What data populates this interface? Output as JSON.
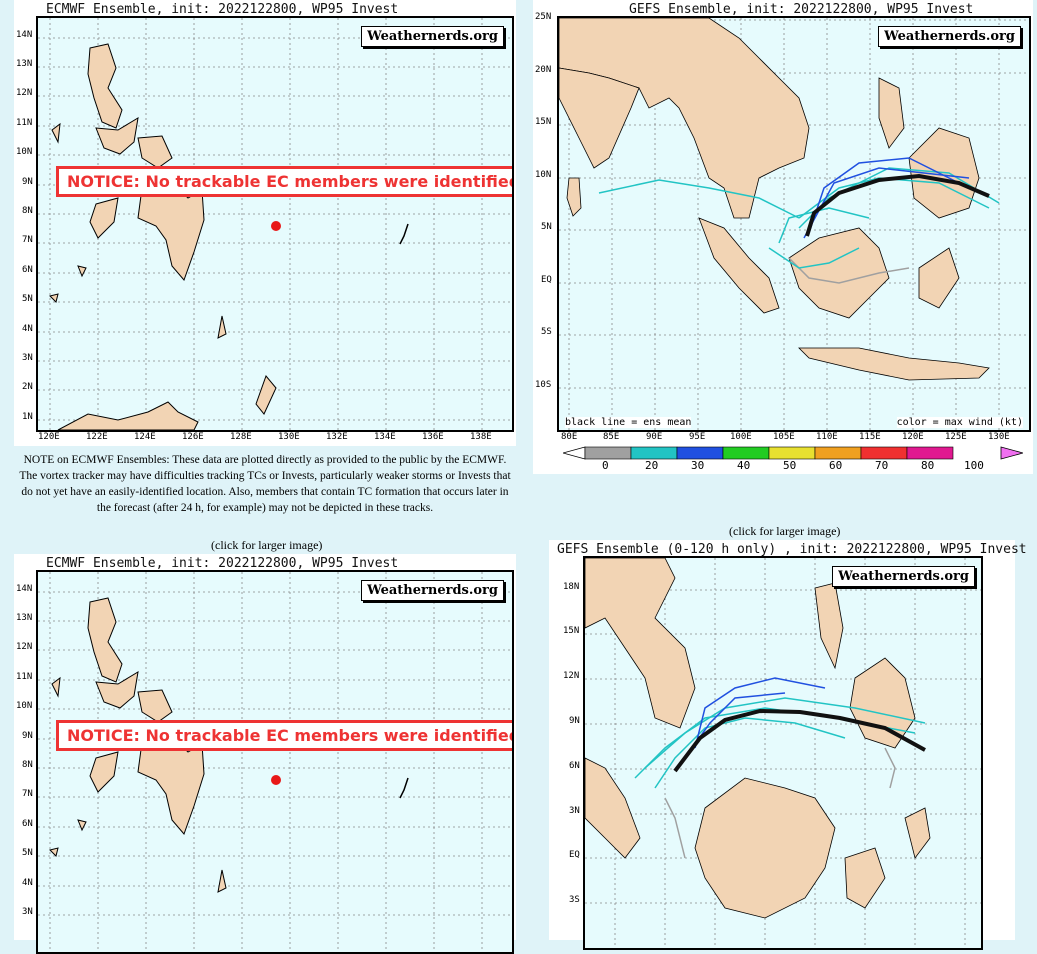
{
  "ec_top": {
    "title": "ECMWF Ensemble, init: 2022122800, WP95 Invest",
    "brand": "Weathernerds.org",
    "notice": "NOTICE: No trackable EC members were identified.",
    "lat_labels": [
      "14N",
      "13N",
      "12N",
      "11N",
      "10N",
      "9N",
      "8N",
      "7N",
      "6N",
      "5N",
      "4N",
      "3N",
      "2N",
      "1N"
    ],
    "lon_labels": [
      "120E",
      "122E",
      "124E",
      "126E",
      "128E",
      "130E",
      "132E",
      "134E",
      "136E",
      "138E"
    ]
  },
  "gefs_top": {
    "title": "GEFS Ensemble, init: 2022122800, WP95 Invest",
    "brand": "Weathernerds.org",
    "lat_labels": [
      "25N",
      "20N",
      "15N",
      "10N",
      "5N",
      "EQ",
      "5S",
      "10S"
    ],
    "lon_labels": [
      "80E",
      "85E",
      "90E",
      "95E",
      "100E",
      "105E",
      "110E",
      "115E",
      "120E",
      "125E",
      "130E"
    ],
    "legend_left": "black line = ens mean",
    "legend_right": "color = max wind (kt)",
    "colorbar_ticks": [
      "0",
      "20",
      "30",
      "40",
      "50",
      "60",
      "70",
      "80",
      "100"
    ],
    "colorbar_colors": [
      "#a0a0a0",
      "#22c4c4",
      "#2050e0",
      "#22cc22",
      "#e8e030",
      "#f0a020",
      "#f03030",
      "#e01890",
      "#f070f0"
    ]
  },
  "note_text": "NOTE on ECMWF Ensembles: These data are plotted directly as provided to the public by the ECMWF. The vortex tracker may have difficulties tracking TCs or Invests, particularly weaker storms or Invests that do not yet have an easily-identified location. Also, members that contain TC formation that occurs later in the forecast (after 24 h, for example) may not be depicted in these tracks.",
  "click_left": "(click for larger image)",
  "click_right": "(click for larger image)",
  "ec_bottom": {
    "title": "ECMWF Ensemble, init: 2022122800, WP95 Invest",
    "brand": "Weathernerds.org",
    "notice": "NOTICE: No trackable EC members were identified.",
    "lat_labels": [
      "14N",
      "13N",
      "12N",
      "11N",
      "10N",
      "9N",
      "8N",
      "7N",
      "6N",
      "5N",
      "4N",
      "3N"
    ]
  },
  "gefs_bottom": {
    "title": "GEFS Ensemble (0-120 h only) , init: 2022122800, WP95 Invest",
    "brand": "Weathernerds.org",
    "lat_labels": [
      "18N",
      "15N",
      "12N",
      "9N",
      "6N",
      "3N",
      "EQ",
      "3S"
    ]
  },
  "colors": {
    "land": "#f2d4b4",
    "ocean": "#e6fbfd",
    "notice_red": "#e33333",
    "marker_red": "#e81818"
  }
}
